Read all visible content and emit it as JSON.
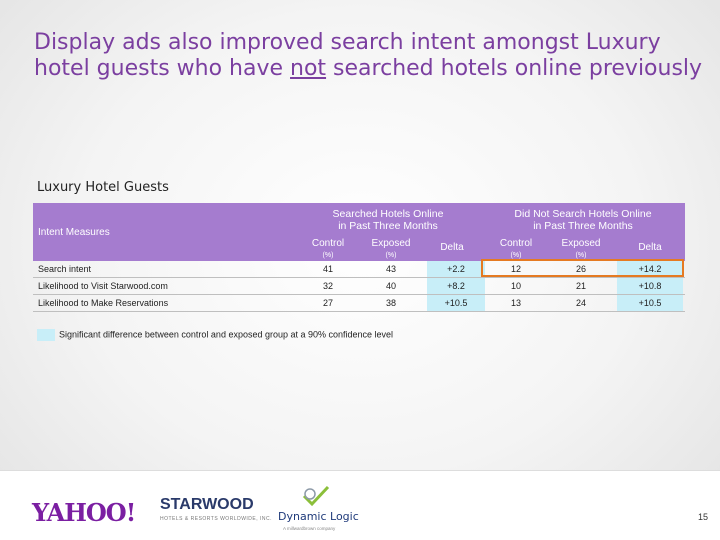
{
  "title": {
    "part1": "Display ads also improved search intent amongst Luxury hotel guests who have ",
    "underlined": "not",
    "part2": " searched hotels online previously"
  },
  "section_label": "Luxury Hotel Guests",
  "table": {
    "row_header": "Intent Measures",
    "group1": {
      "line1": "Searched Hotels Online",
      "line2": "in Past Three Months"
    },
    "group2": {
      "line1": "Did Not Search Hotels Online",
      "line2": "in Past Three Months"
    },
    "col_control": {
      "line1": "Control",
      "line2": "(%)"
    },
    "col_exposed": {
      "line1": "Exposed",
      "line2": "(%)"
    },
    "col_delta": "Delta",
    "rows": [
      {
        "label": "Search intent",
        "c1": "41",
        "e1": "43",
        "d1": "+2.2",
        "c2": "12",
        "e2": "26",
        "d2": "+14.2"
      },
      {
        "label": "Likelihood to Visit Starwood.com",
        "c1": "32",
        "e1": "40",
        "d1": "+8.2",
        "c2": "10",
        "e2": "21",
        "d2": "+10.8"
      },
      {
        "label": "Likelihood to Make Reservations",
        "c1": "27",
        "e1": "38",
        "d1": "+10.5",
        "c2": "13",
        "e2": "24",
        "d2": "+10.5"
      }
    ]
  },
  "legend_text": "Significant difference between control and exposed group at a 90% confidence level",
  "footer": {
    "yahoo": "YAHOO!",
    "starwood": "STARWOOD",
    "starwood_sub": "HOTELS & RESORTS WORLDWIDE, INC.",
    "dynamic_logic": "Dynamic Logic",
    "dl_sub": "A millwardbrown company",
    "page_number": "15"
  },
  "colors": {
    "title": "#7b3fa0",
    "header_bg": "#a57ccf",
    "highlight": "#c8eef8",
    "box": "#e57a22"
  }
}
